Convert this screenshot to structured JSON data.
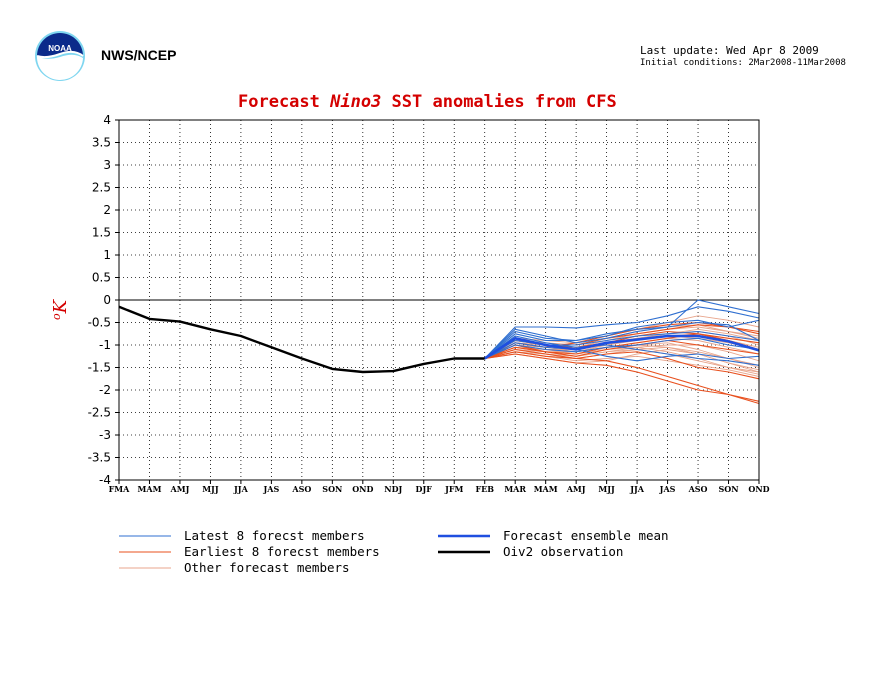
{
  "header": {
    "org": "NWS/NCEP",
    "last_update": "Last update: Wed Apr 8 2009",
    "initial_conditions": "Initial conditions: 2Mar2008-11Mar2008"
  },
  "colors": {
    "latest": "#2f6fd0",
    "earliest": "#e8501e",
    "other": "#e8a58c",
    "mean": "#1f4fe0",
    "obs": "#000000",
    "title": "#d40000"
  },
  "chart_data": {
    "type": "line",
    "title_parts": [
      "Forecast ",
      "Nino3",
      " SST anomalies from CFS"
    ],
    "ylabel": "oK",
    "ylim": [
      -4,
      4
    ],
    "yticks": [
      "4",
      "3.5",
      "3",
      "2.5",
      "2",
      "1.5",
      "1",
      "0.5",
      "0",
      "-0.5",
      "-1",
      "-1.5",
      "-2",
      "-2.5",
      "-3",
      "-3.5",
      "-4"
    ],
    "categories": [
      "FMA",
      "MAM",
      "AMJ",
      "MJJ",
      "JJA",
      "JAS",
      "ASO",
      "SON",
      "OND",
      "NDJ",
      "DJF",
      "JFM",
      "FEB",
      "MAR",
      "MAM",
      "AMJ",
      "MJJ",
      "JJA",
      "JAS",
      "ASO",
      "SON",
      "OND"
    ],
    "grid": true,
    "series": [
      {
        "name": "Oiv2 observation",
        "kind": "obs",
        "values": [
          -0.15,
          -0.42,
          -0.48,
          -0.65,
          -0.8,
          -1.05,
          -1.3,
          -1.53,
          -1.6,
          -1.58,
          -1.42,
          -1.3,
          -1.3,
          null,
          null,
          null,
          null,
          null,
          null,
          null,
          null,
          null
        ]
      },
      {
        "name": "Forecast ensemble mean",
        "kind": "mean",
        "values": [
          null,
          null,
          null,
          null,
          null,
          null,
          null,
          null,
          null,
          null,
          null,
          null,
          -1.3,
          -0.85,
          -1.0,
          -1.1,
          -0.95,
          -0.88,
          -0.8,
          -0.8,
          -0.92,
          -1.12
        ]
      },
      {
        "name": "Latest 8 forecst members",
        "kind": "latest",
        "members": [
          [
            -1.3,
            -0.65,
            -0.8,
            -0.95,
            -0.85,
            -0.7,
            -0.6,
            -0.5,
            -0.55,
            -0.9
          ],
          [
            -1.3,
            -0.6,
            -0.6,
            -0.62,
            -0.55,
            -0.5,
            -0.35,
            -0.15,
            -0.25,
            -0.4
          ],
          [
            -1.3,
            -0.7,
            -0.85,
            -0.9,
            -0.8,
            -0.6,
            -0.5,
            -0.45,
            -0.6,
            -0.45
          ],
          [
            -1.3,
            -0.9,
            -1.0,
            -1.0,
            -0.9,
            -0.8,
            -0.75,
            -0.7,
            -0.8,
            -0.9
          ],
          [
            -1.3,
            -1.0,
            -1.1,
            -1.15,
            -1.05,
            -1.0,
            -0.9,
            -0.85,
            -1.0,
            -1.1
          ],
          [
            -1.3,
            -0.8,
            -0.95,
            -1.05,
            -1.0,
            -1.1,
            -1.2,
            -1.3,
            -1.35,
            -1.45
          ],
          [
            -1.3,
            -0.75,
            -0.9,
            -0.9,
            -0.75,
            -0.65,
            -0.6,
            0.0,
            -0.15,
            -0.3
          ],
          [
            -1.3,
            -0.95,
            -1.05,
            -1.1,
            -1.25,
            -1.35,
            -1.25,
            -1.2,
            -1.3,
            -1.25
          ]
        ]
      },
      {
        "name": "Earliest 8 forecst members",
        "kind": "earliest",
        "members": [
          [
            -1.3,
            -1.15,
            -1.25,
            -1.3,
            -1.35,
            -1.5,
            -1.7,
            -1.9,
            -2.1,
            -2.3
          ],
          [
            -1.3,
            -1.2,
            -1.3,
            -1.4,
            -1.45,
            -1.6,
            -1.8,
            -2.0,
            -2.1,
            -2.25
          ],
          [
            -1.3,
            -0.9,
            -1.0,
            -1.0,
            -0.85,
            -0.75,
            -0.65,
            -0.55,
            -0.6,
            -0.7
          ],
          [
            -1.3,
            -1.0,
            -1.15,
            -1.2,
            -1.05,
            -0.95,
            -0.85,
            -0.75,
            -0.9,
            -1.1
          ],
          [
            -1.3,
            -0.85,
            -1.0,
            -1.05,
            -0.95,
            -0.8,
            -0.7,
            -0.75,
            -0.85,
            -0.95
          ],
          [
            -1.3,
            -1.1,
            -1.2,
            -1.3,
            -1.2,
            -1.15,
            -1.3,
            -1.5,
            -1.6,
            -1.75
          ],
          [
            -1.3,
            -0.95,
            -1.05,
            -0.95,
            -0.8,
            -0.65,
            -0.55,
            -0.5,
            -0.6,
            -0.75
          ],
          [
            -1.3,
            -1.05,
            -1.15,
            -1.25,
            -1.1,
            -1.0,
            -0.9,
            -1.0,
            -1.1,
            -1.2
          ]
        ]
      },
      {
        "name": "Other forecast members",
        "kind": "other",
        "members": [
          [
            -1.3,
            -1.0,
            -1.1,
            -1.2,
            -1.1,
            -1.0,
            -0.95,
            -1.1,
            -1.3,
            -1.5
          ],
          [
            -1.3,
            -1.1,
            -1.2,
            -1.25,
            -1.15,
            -1.05,
            -1.0,
            -1.0,
            -1.15,
            -1.35
          ],
          [
            -1.3,
            -0.95,
            -1.05,
            -1.1,
            -1.0,
            -0.9,
            -0.8,
            -0.75,
            -0.9,
            -1.05
          ],
          [
            -1.3,
            -1.15,
            -1.25,
            -1.35,
            -1.3,
            -1.25,
            -1.35,
            -1.45,
            -1.55,
            -1.7
          ],
          [
            -1.3,
            -0.9,
            -0.95,
            -1.0,
            -0.85,
            -0.7,
            -0.6,
            -0.55,
            -0.7,
            -0.85
          ],
          [
            -1.3,
            -1.05,
            -1.15,
            -1.15,
            -1.0,
            -0.85,
            -0.75,
            -0.65,
            -0.75,
            -0.9
          ],
          [
            -1.3,
            -1.2,
            -1.3,
            -1.4,
            -1.35,
            -1.2,
            -1.1,
            -1.2,
            -1.4,
            -1.6
          ],
          [
            -1.3,
            -0.85,
            -0.9,
            -0.95,
            -0.8,
            -0.65,
            -0.5,
            -0.35,
            -0.45,
            -0.6
          ],
          [
            -1.3,
            -1.0,
            -1.05,
            -1.15,
            -1.05,
            -0.95,
            -0.85,
            -0.9,
            -1.05,
            -1.2
          ],
          [
            -1.3,
            -1.1,
            -1.15,
            -1.2,
            -1.1,
            -1.05,
            -1.15,
            -1.3,
            -1.5,
            -1.65
          ],
          [
            -1.3,
            -0.95,
            -1.0,
            -1.05,
            -0.95,
            -0.85,
            -0.75,
            -0.7,
            -0.8,
            -1.0
          ],
          [
            -1.3,
            -1.05,
            -1.1,
            -1.1,
            -0.95,
            -0.85,
            -0.8,
            -0.85,
            -0.95,
            -1.1
          ],
          [
            -1.3,
            -1.15,
            -1.2,
            -1.3,
            -1.2,
            -1.1,
            -1.05,
            -1.15,
            -1.3,
            -1.45
          ],
          [
            -1.3,
            -0.9,
            -1.0,
            -1.05,
            -0.9,
            -0.75,
            -0.65,
            -0.6,
            -0.7,
            -0.8
          ],
          [
            -1.3,
            -1.0,
            -1.1,
            -1.15,
            -1.05,
            -1.0,
            -1.05,
            -1.2,
            -1.4,
            -1.55
          ],
          [
            -1.3,
            -1.05,
            -1.15,
            -1.25,
            -1.15,
            -1.1,
            -1.2,
            -1.35,
            -1.5,
            -1.6
          ]
        ]
      }
    ],
    "forecast_start_index": 12,
    "legend": [
      {
        "label": "Latest 8 forecst members",
        "kind": "latest"
      },
      {
        "label": "Forecast ensemble mean",
        "kind": "mean"
      },
      {
        "label": "Earliest 8 forecst members",
        "kind": "earliest"
      },
      {
        "label": "Oiv2 observation",
        "kind": "obs"
      },
      {
        "label": "Other forecast members",
        "kind": "other"
      }
    ]
  }
}
